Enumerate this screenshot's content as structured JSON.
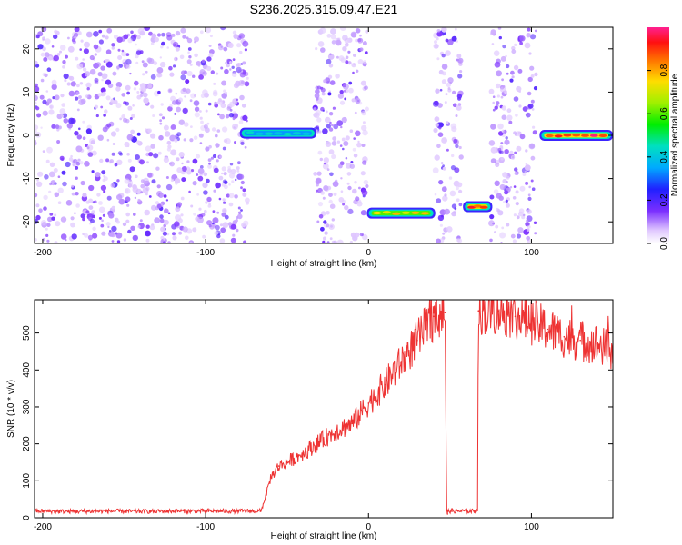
{
  "title": "S236.2025.315.09.47.E21",
  "chart_data": [
    {
      "type": "heatmap",
      "xlabel": "Height of straight line (km)",
      "ylabel": "Frequency (Hz)",
      "xlim": [
        -205,
        150
      ],
      "ylim": [
        -25,
        25
      ],
      "xticks": [
        -200,
        -100,
        0,
        100
      ],
      "yticks": [
        -20,
        -10,
        0,
        10,
        20
      ],
      "colorbar": {
        "label": "Normalized spectral amplitude",
        "range": [
          0,
          1
        ],
        "ticks": [
          0.0,
          0.2,
          0.4,
          0.6,
          0.8
        ],
        "tick_labels": [
          "0.0",
          "0.2",
          "0.4",
          "0.6",
          "0.8"
        ]
      },
      "noise_regions": [
        {
          "x0": -205,
          "x1": -74
        },
        {
          "x0": -33,
          "x1": -1
        },
        {
          "x0": 41,
          "x1": 57
        },
        {
          "x0": 75,
          "x1": 103
        }
      ],
      "signal_tracks": [
        {
          "x0": -79,
          "x1": -32,
          "freq": 0.5,
          "peak": 0.45
        },
        {
          "x0": -1,
          "x1": 41,
          "freq": -18,
          "peak": 0.8
        },
        {
          "x0": 58,
          "x1": 76,
          "freq": -16.5,
          "peak": 0.95
        },
        {
          "x0": 105,
          "x1": 150,
          "freq": 0,
          "peak": 1.0
        }
      ]
    },
    {
      "type": "line",
      "xlabel": "Height of straight line (km)",
      "ylabel": "SNR (10 * v/v)",
      "xlim": [
        -205,
        150
      ],
      "ylim": [
        0,
        590
      ],
      "xticks": [
        -200,
        -100,
        0,
        100
      ],
      "yticks": [
        0,
        100,
        200,
        300,
        400,
        500
      ],
      "series": [
        {
          "name": "SNR",
          "color": "#ee3333",
          "x": [
            -205,
            -180,
            -160,
            -140,
            -120,
            -100,
            -80,
            -66,
            -63,
            -60,
            -55,
            -50,
            -40,
            -30,
            -20,
            -10,
            0,
            10,
            20,
            30,
            40,
            46,
            47,
            48,
            48.5,
            49,
            55,
            60,
            65,
            67,
            67.5,
            68,
            70,
            80,
            90,
            100,
            110,
            120,
            130,
            140,
            150
          ],
          "y": [
            18,
            17,
            18,
            17,
            18,
            18,
            18,
            18,
            60,
            110,
            140,
            150,
            175,
            205,
            235,
            255,
            310,
            360,
            420,
            480,
            545,
            555,
            555,
            20,
            10,
            18,
            18,
            18,
            18,
            20,
            560,
            560,
            560,
            560,
            545,
            530,
            510,
            490,
            480,
            470,
            450
          ]
        }
      ]
    }
  ]
}
